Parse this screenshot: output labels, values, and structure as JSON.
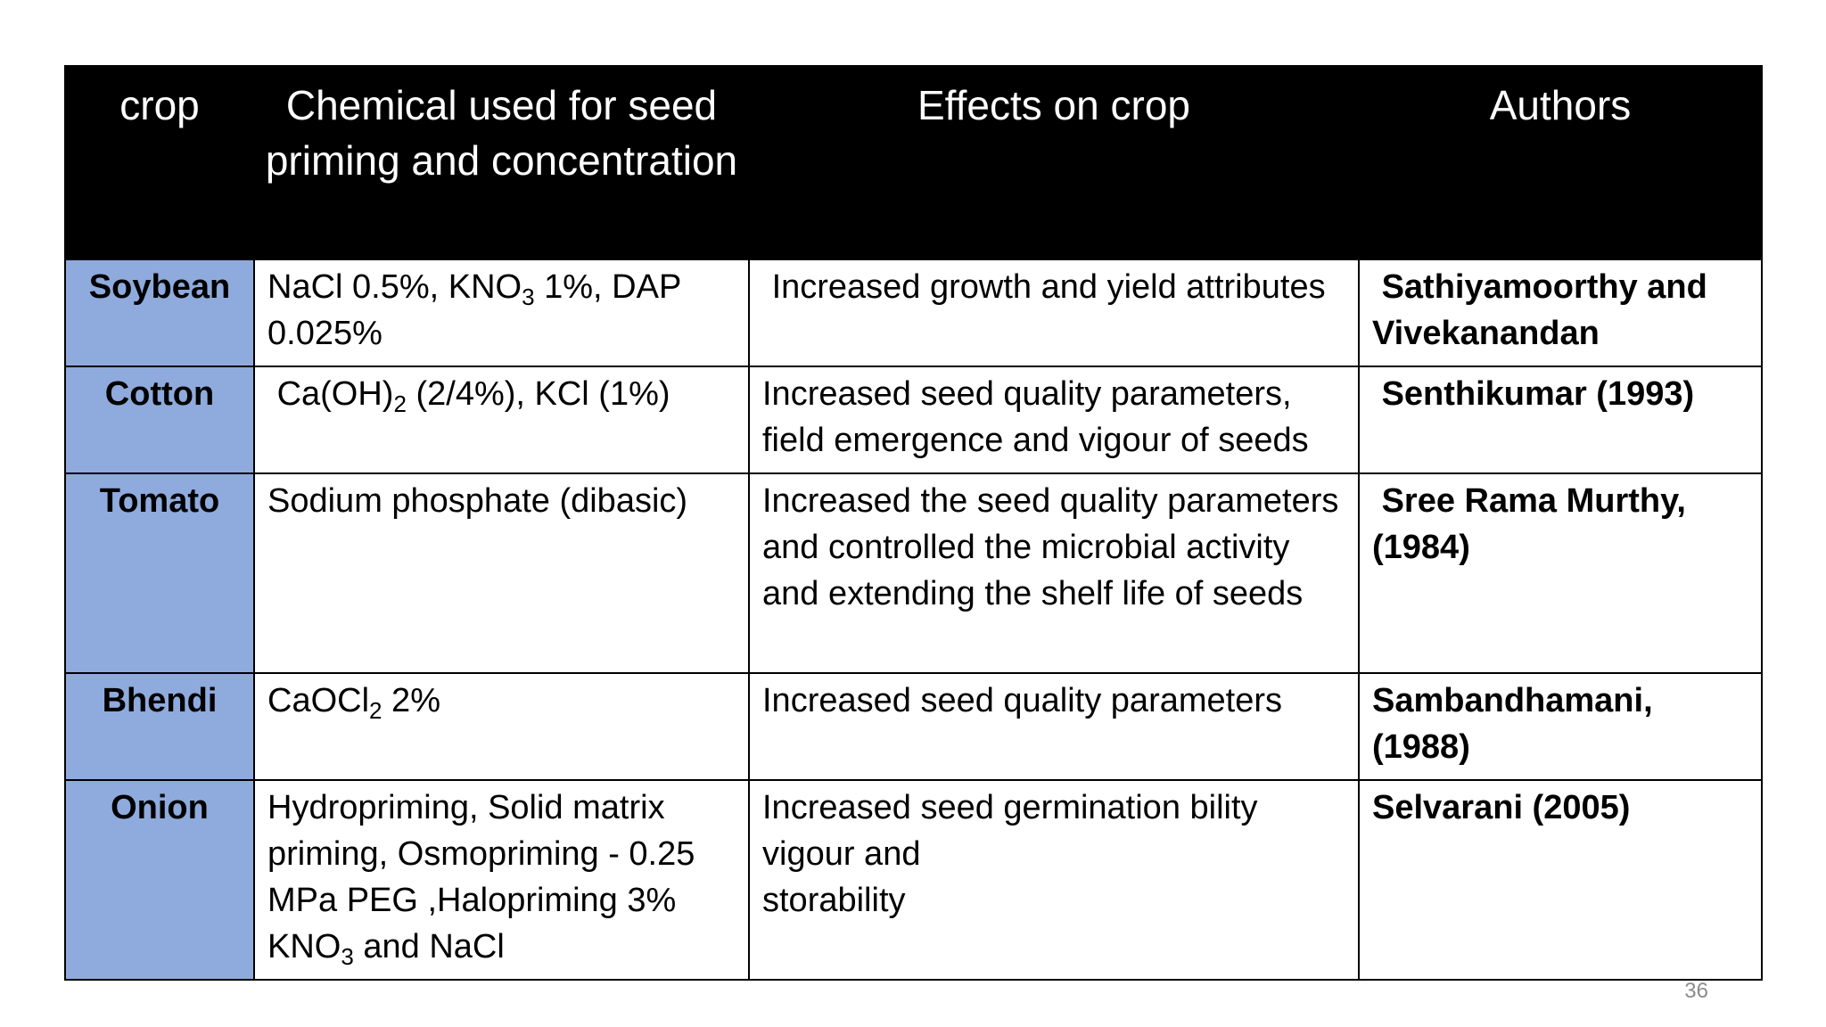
{
  "table": {
    "headers": {
      "crop": "crop",
      "chemical": "Chemical used for seed priming and concentration",
      "effects": "Effects on crop",
      "authors": "Authors"
    },
    "rows": [
      {
        "crop": "Soybean",
        "chemical_parts": [
          "NaCl 0.5%, KNO",
          "3",
          " 1%, DAP 0.025%"
        ],
        "effects": "Increased growth and yield attributes",
        "authors": "Sathiyamoorthy and Vivekanandan"
      },
      {
        "crop": "Cotton",
        "chemical_parts": [
          "Ca(OH)",
          "2",
          " (2/4%), KCl (1%)"
        ],
        "effects": "Increased seed quality parameters, field emergence and vigour of seeds",
        "authors": "Senthikumar (1993)"
      },
      {
        "crop": "Tomato",
        "chemical_parts": [
          "Sodium phosphate (dibasic)"
        ],
        "effects": "Increased the seed quality parameters and controlled the microbial activity and extending the shelf life of seeds",
        "authors": "Sree Rama Murthy, (1984)"
      },
      {
        "crop": "Bhendi",
        "chemical_parts": [
          "CaOCl",
          "2",
          " 2%"
        ],
        "effects": "Increased seed quality parameters",
        "authors": "Sambandhamani, (1988)"
      },
      {
        "crop": "Onion",
        "chemical_parts": [
          "Hydropriming, Solid matrix priming, Osmopriming - 0.25 MPa PEG ,Halopriming 3% KNO",
          "3",
          " and NaCl"
        ],
        "effects_lines": [
          "Increased seed germination bility vigour and",
          "storability"
        ],
        "authors": "Selvarani (2005)"
      }
    ]
  },
  "page_number": "36",
  "colors": {
    "header_bg": "#000000",
    "header_text": "#ffffff",
    "crop_cell_bg": "#8faadc",
    "page_number": "#8c8c8c"
  }
}
